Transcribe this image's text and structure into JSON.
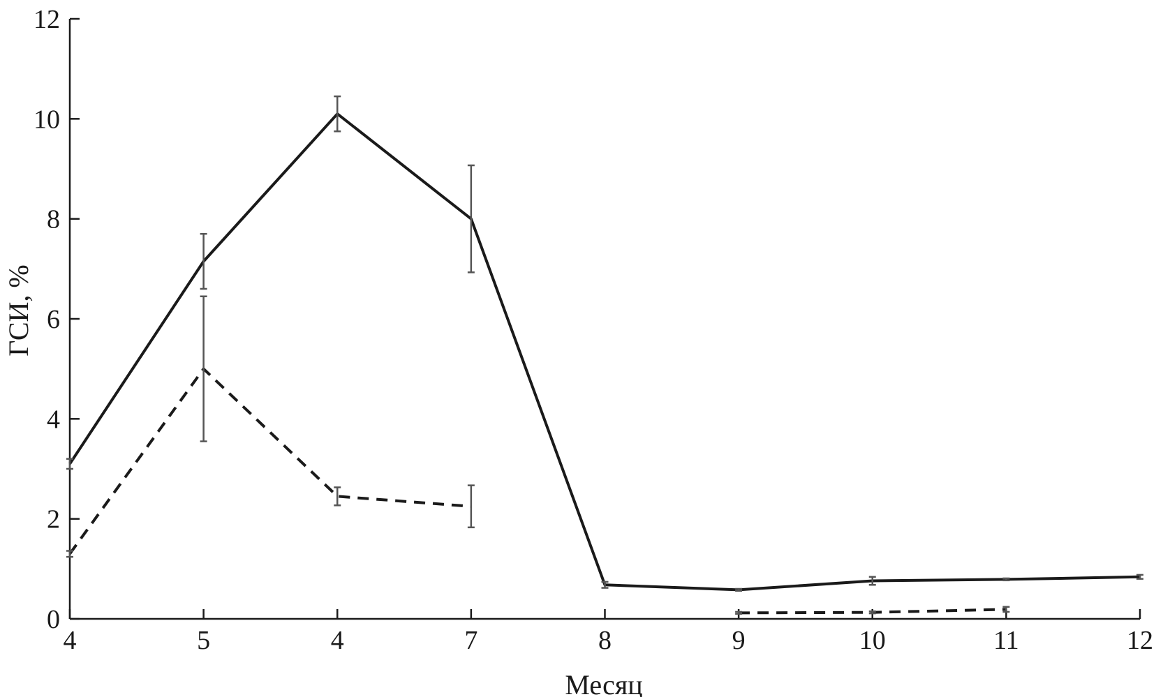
{
  "chart_data": {
    "type": "line",
    "title": "",
    "xlabel": "Месяц",
    "ylabel": "ГСИ, %",
    "categories": [
      "4",
      "5",
      "4",
      "7",
      "8",
      "9",
      "10",
      "11",
      "12"
    ],
    "ylim": [
      0,
      12
    ],
    "yticks": [
      0,
      2,
      4,
      6,
      8,
      10,
      12
    ],
    "grid": false,
    "series": [
      {
        "style": "solid",
        "color": "#1a1a1a",
        "values": [
          3.1,
          7.15,
          10.1,
          8.0,
          0.68,
          0.58,
          0.76,
          0.79,
          0.84
        ],
        "error": [
          0.1,
          0.55,
          0.35,
          1.07,
          0.06,
          0.02,
          0.08,
          0.02,
          0.04
        ]
      },
      {
        "style": "dashed",
        "color": "#1a1a1a",
        "values": [
          1.3,
          5.0,
          2.45,
          2.25,
          null,
          0.12,
          0.13,
          0.19,
          null
        ],
        "error": [
          0.06,
          1.45,
          0.18,
          0.42,
          null,
          0.02,
          0.02,
          0.05,
          null
        ]
      }
    ]
  }
}
